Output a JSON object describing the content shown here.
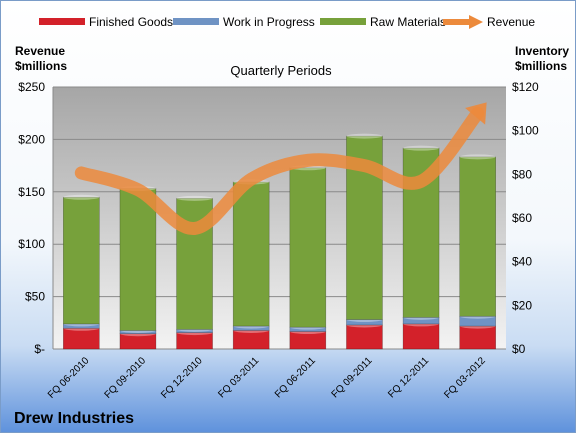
{
  "chart_data": {
    "type": "bar",
    "title": "Quarterly Periods",
    "company": "Drew Industries",
    "categories": [
      "FQ 06-2010",
      "FQ 09-2010",
      "FQ 12-2010",
      "FQ 03-2011",
      "FQ 06-2011",
      "FQ 09-2011",
      "FQ 12-2011",
      "FQ 03-2012"
    ],
    "series": [
      {
        "name": "Finished Goods",
        "axis": "right",
        "stack": true,
        "color": "#d3212a",
        "values": [
          9.5,
          7.0,
          7.5,
          8.5,
          8.0,
          11.0,
          11.5,
          10.5
        ]
      },
      {
        "name": "Work in Progress",
        "axis": "right",
        "stack": true,
        "color": "#6f93c4",
        "values": [
          2.0,
          1.5,
          1.5,
          2.0,
          2.0,
          2.5,
          3.0,
          4.5
        ]
      },
      {
        "name": "Raw Materials",
        "axis": "right",
        "stack": true,
        "color": "#77a13b",
        "values": [
          58.0,
          65.0,
          60.0,
          66.0,
          73.0,
          84.0,
          77.5,
          73.0
        ]
      },
      {
        "name": "Revenue",
        "axis": "left",
        "type": "line",
        "color": "#ec8a3c",
        "values": [
          168,
          152,
          115,
          162,
          180,
          175,
          160,
          225
        ]
      }
    ],
    "y_left": {
      "label_lines": [
        "Revenue",
        "$millions"
      ],
      "min": 0,
      "max": 250,
      "ticks": [
        0,
        50,
        100,
        150,
        200,
        250
      ],
      "tick_labels": [
        "$-",
        "$50",
        "$100",
        "$150",
        "$200",
        "$250"
      ]
    },
    "y_right": {
      "label_lines": [
        "Inventory",
        "$millions"
      ],
      "min": 0,
      "max": 120,
      "ticks": [
        0,
        20,
        40,
        60,
        80,
        100,
        120
      ],
      "tick_labels": [
        "$0",
        "$20",
        "$40",
        "$60",
        "$80",
        "$100",
        "$120"
      ]
    },
    "grid": true,
    "legend_position": "top"
  }
}
